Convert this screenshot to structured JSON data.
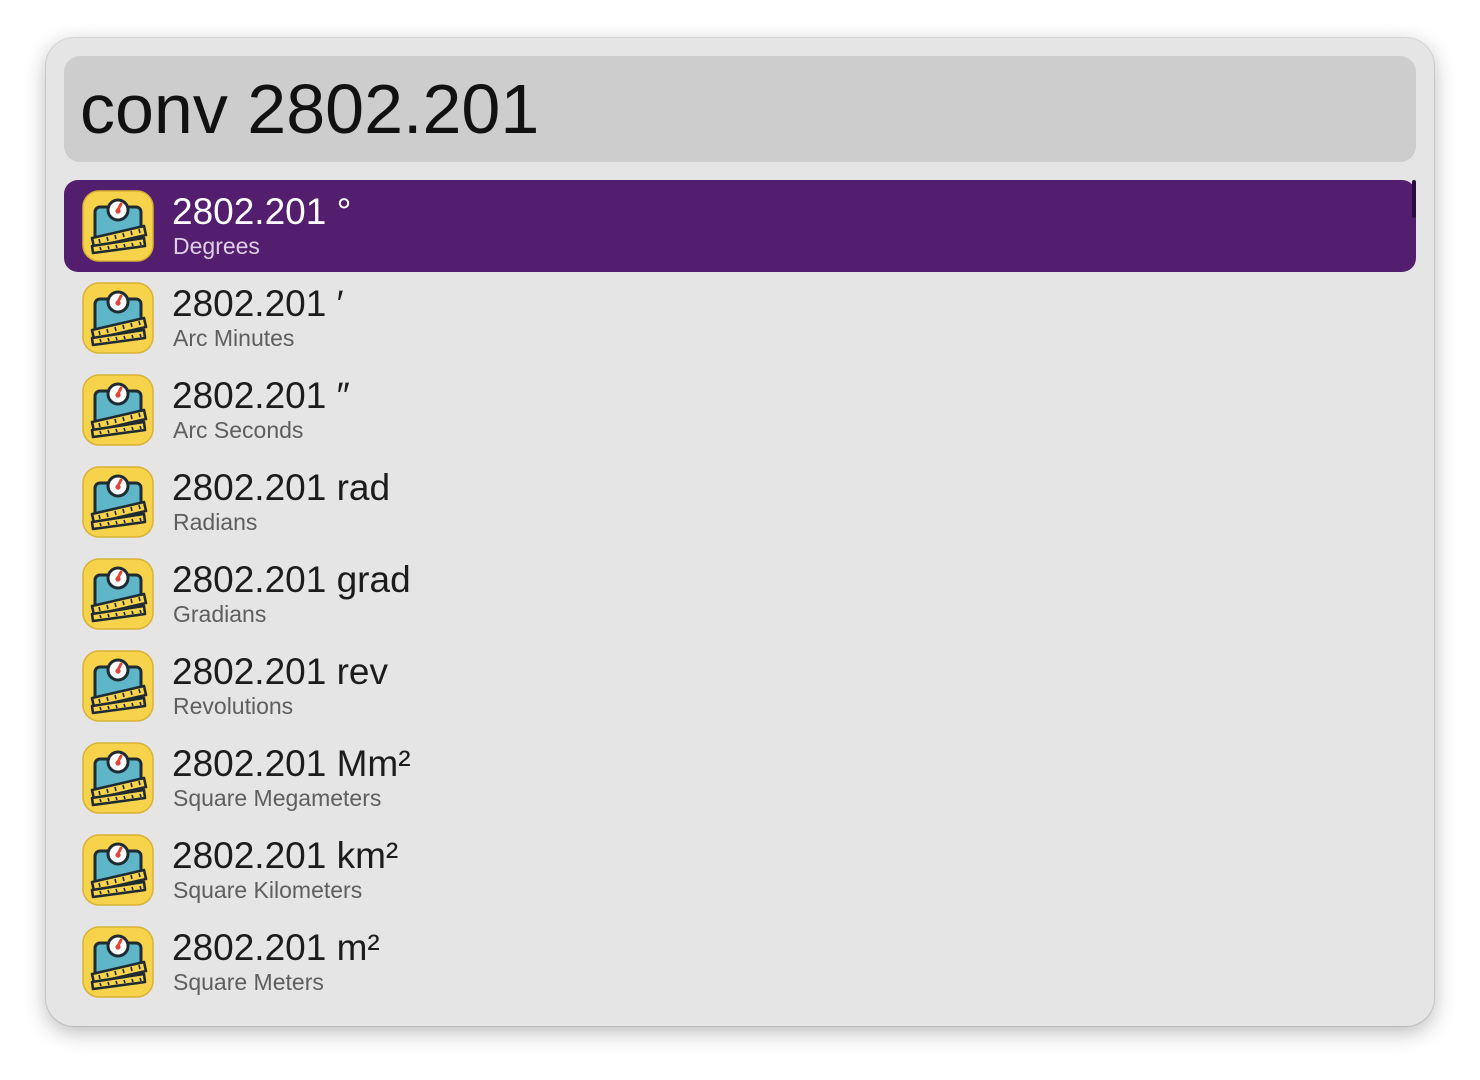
{
  "search": {
    "query": "conv 2802.201"
  },
  "results": [
    {
      "title": "2802.201 °",
      "subtitle": "Degrees",
      "icon": "converter-app-icon",
      "selected": true
    },
    {
      "title": "2802.201 ′",
      "subtitle": "Arc Minutes",
      "icon": "converter-app-icon",
      "selected": false
    },
    {
      "title": "2802.201 ″",
      "subtitle": "Arc Seconds",
      "icon": "converter-app-icon",
      "selected": false
    },
    {
      "title": "2802.201 rad",
      "subtitle": "Radians",
      "icon": "converter-app-icon",
      "selected": false
    },
    {
      "title": "2802.201 grad",
      "subtitle": "Gradians",
      "icon": "converter-app-icon",
      "selected": false
    },
    {
      "title": "2802.201 rev",
      "subtitle": "Revolutions",
      "icon": "converter-app-icon",
      "selected": false
    },
    {
      "title": "2802.201 Mm²",
      "subtitle": "Square Megameters",
      "icon": "converter-app-icon",
      "selected": false
    },
    {
      "title": "2802.201 km²",
      "subtitle": "Square Kilometers",
      "icon": "converter-app-icon",
      "selected": false
    },
    {
      "title": "2802.201 m²",
      "subtitle": "Square Meters",
      "icon": "converter-app-icon",
      "selected": false
    }
  ],
  "colors": {
    "selection": "#541e6e",
    "window_bg": "#e5e5e5",
    "search_bg": "#cdcdcd"
  }
}
